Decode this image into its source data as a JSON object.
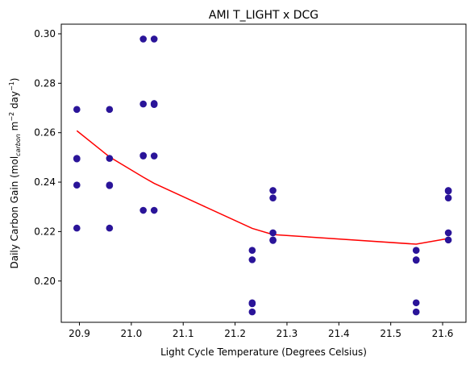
{
  "chart_data": {
    "type": "scatter",
    "title": "AMI T_LIGHT x DCG",
    "xlabel": "Light Cycle Temperature (Degrees Celsius)",
    "ylabel": {
      "prefix": "Daily Carbon Gain (mol",
      "sub": "carbon",
      "mid": " m",
      "sup1": "−2",
      "mid2": " day",
      "sup2": "−1",
      "suffix": ")"
    },
    "xlim": [
      20.865,
      21.645
    ],
    "ylim": [
      0.1833,
      0.3039
    ],
    "xticks": [
      "20.9",
      "21.0",
      "21.1",
      "21.2",
      "21.3",
      "21.4",
      "21.5",
      "21.6"
    ],
    "yticks": [
      "0.20",
      "0.22",
      "0.24",
      "0.26",
      "0.28",
      "0.30"
    ],
    "grid": false,
    "colors": {
      "points": "#2a1499",
      "line": "#ff0000"
    },
    "points": [
      [
        20.895,
        0.2694
      ],
      [
        20.895,
        0.2496
      ],
      [
        20.895,
        0.2494
      ],
      [
        20.895,
        0.2388
      ],
      [
        20.895,
        0.2214
      ],
      [
        20.958,
        0.2694
      ],
      [
        20.958,
        0.2496
      ],
      [
        20.958,
        0.2388
      ],
      [
        20.958,
        0.2386
      ],
      [
        20.958,
        0.2214
      ],
      [
        21.023,
        0.2979
      ],
      [
        21.023,
        0.2716
      ],
      [
        21.023,
        0.2508
      ],
      [
        21.023,
        0.2506
      ],
      [
        21.023,
        0.2286
      ],
      [
        21.044,
        0.2979
      ],
      [
        21.044,
        0.2718
      ],
      [
        21.044,
        0.2714
      ],
      [
        21.044,
        0.2506
      ],
      [
        21.044,
        0.2286
      ],
      [
        21.233,
        0.2124
      ],
      [
        21.233,
        0.2086
      ],
      [
        21.233,
        0.1912
      ],
      [
        21.233,
        0.1908
      ],
      [
        21.233,
        0.1875
      ],
      [
        21.273,
        0.2366
      ],
      [
        21.273,
        0.2336
      ],
      [
        21.273,
        0.2195
      ],
      [
        21.273,
        0.2166
      ],
      [
        21.273,
        0.2164
      ],
      [
        21.549,
        0.2124
      ],
      [
        21.549,
        0.2086
      ],
      [
        21.549,
        0.2084
      ],
      [
        21.549,
        0.1912
      ],
      [
        21.549,
        0.1875
      ],
      [
        21.611,
        0.2366
      ],
      [
        21.611,
        0.2364
      ],
      [
        21.611,
        0.2336
      ],
      [
        21.611,
        0.2195
      ],
      [
        21.611,
        0.2166
      ]
    ],
    "trend_line": {
      "x": [
        20.895,
        20.958,
        21.023,
        21.044,
        21.233,
        21.273,
        21.549,
        21.611
      ],
      "y": [
        0.2608,
        0.2502,
        0.242,
        0.2395,
        0.2213,
        0.2188,
        0.2149,
        0.2172
      ]
    }
  }
}
